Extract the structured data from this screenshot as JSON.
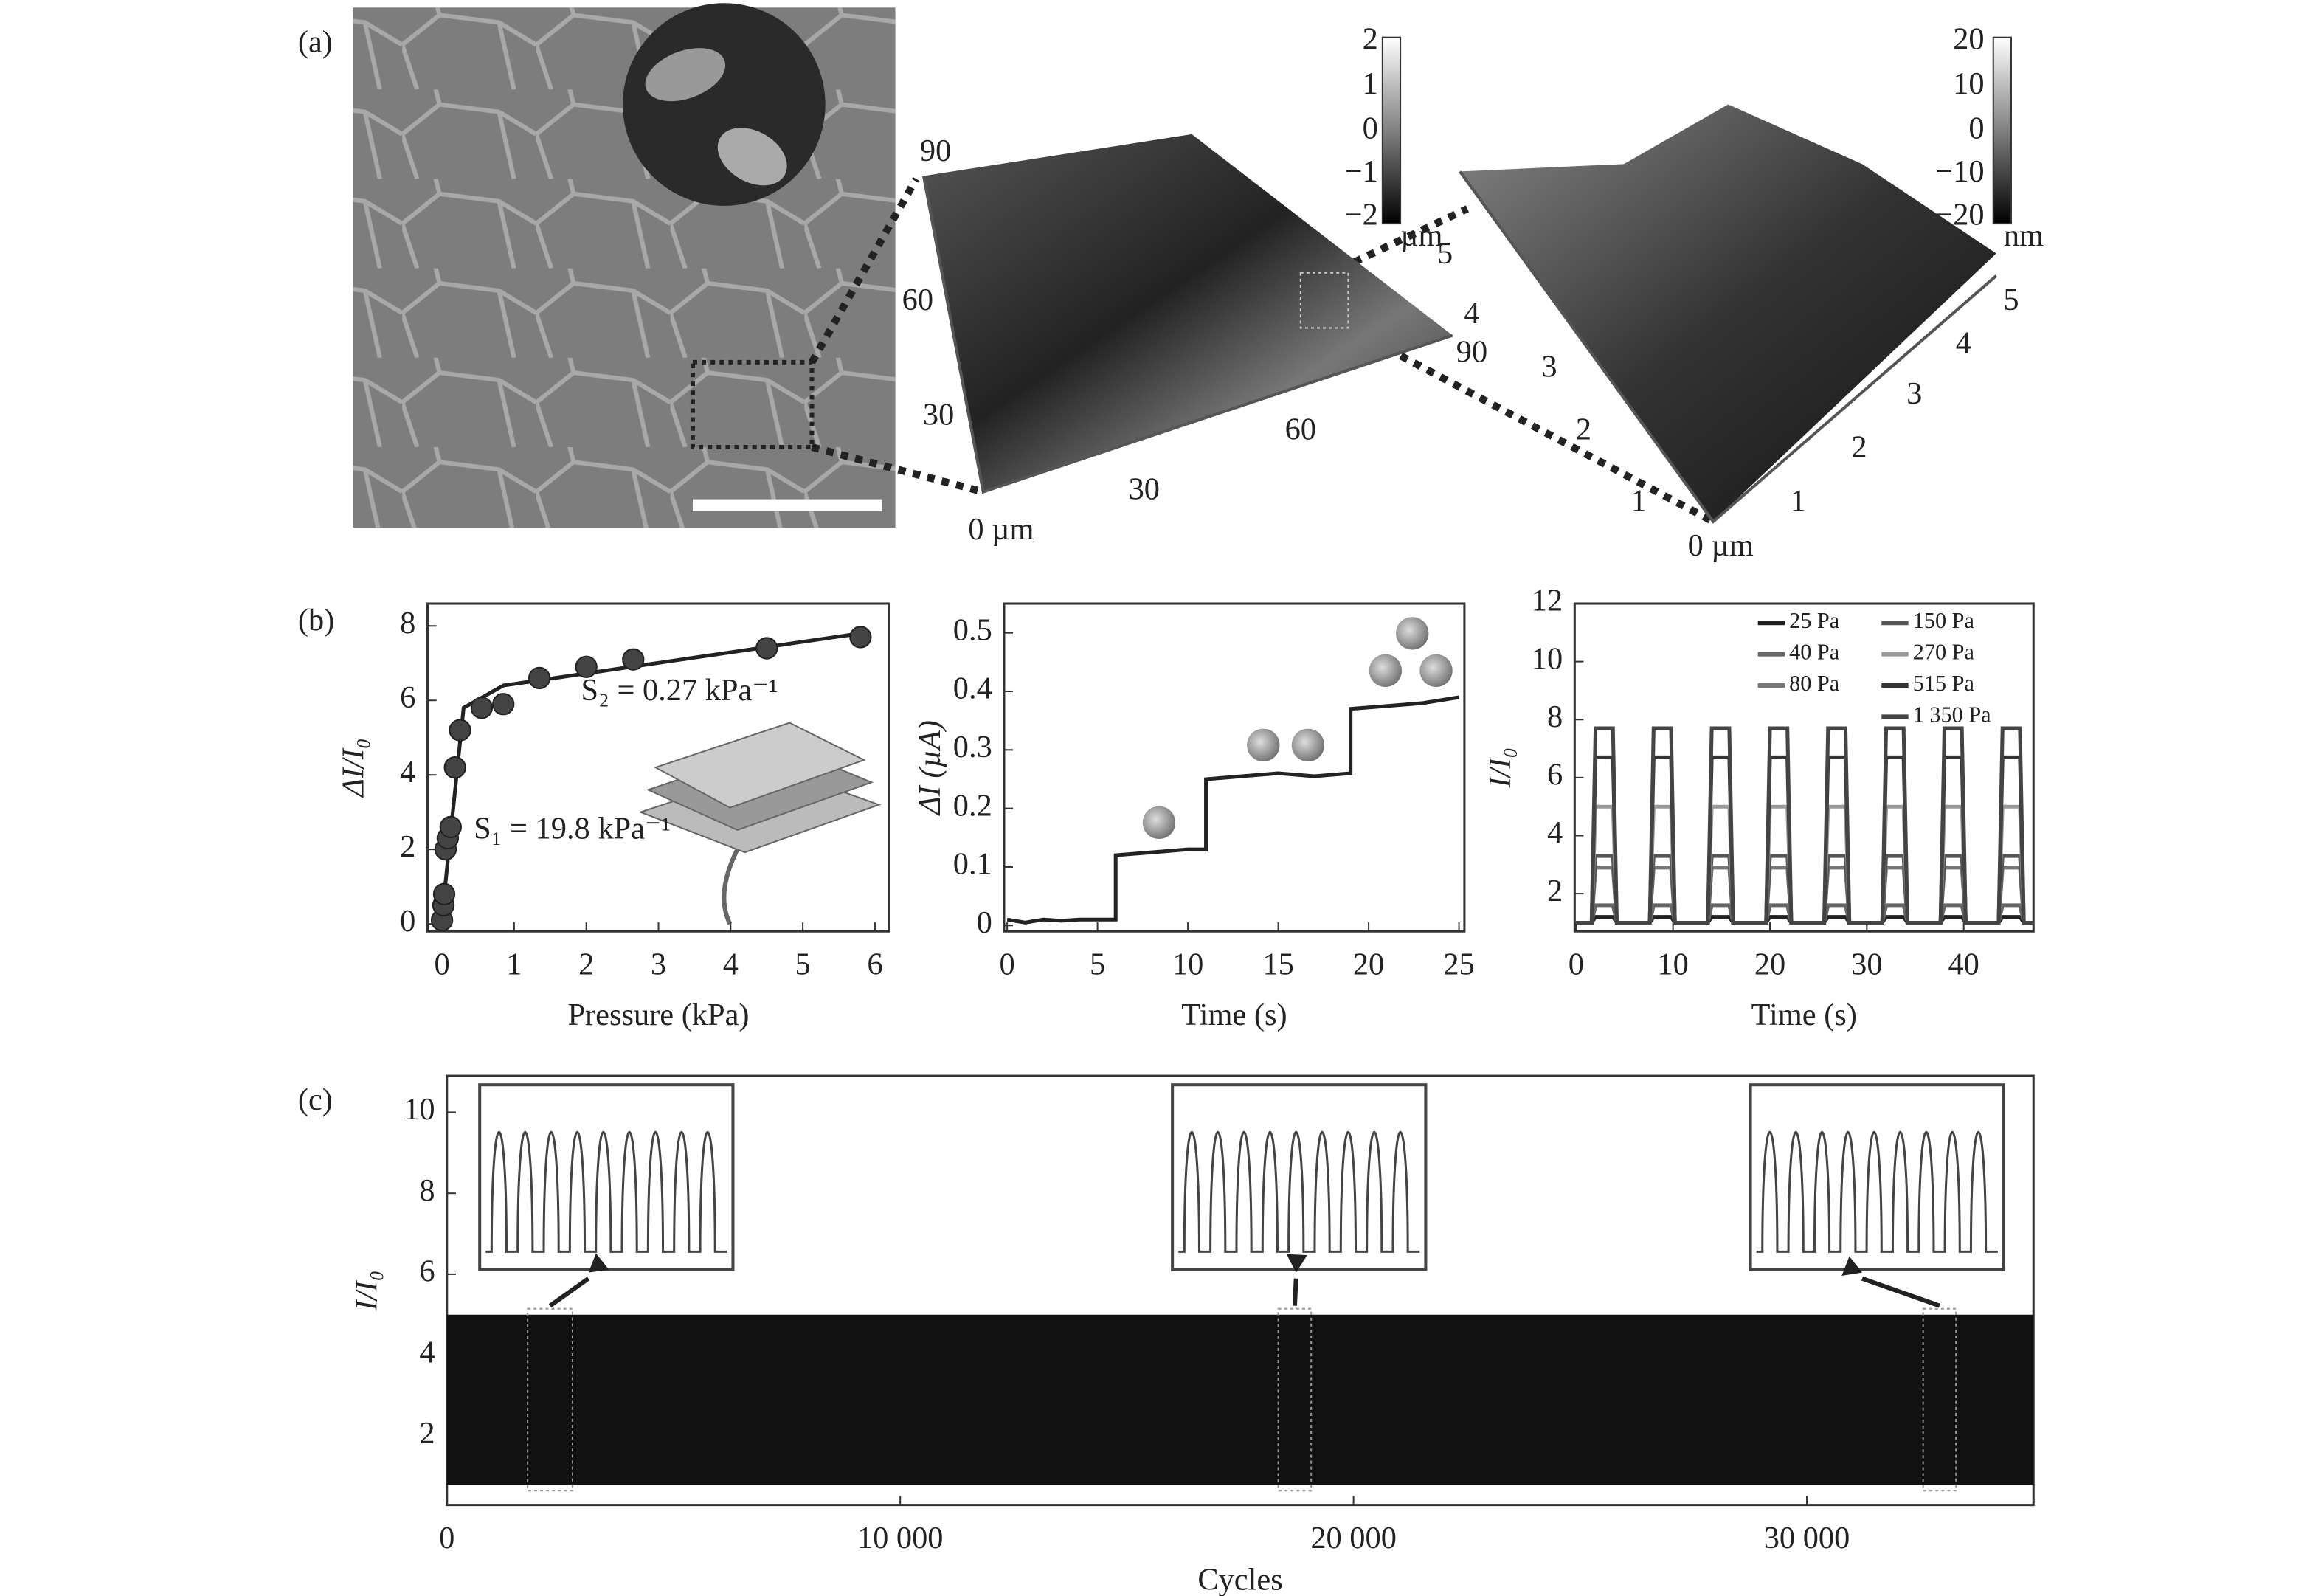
{
  "figure": {
    "panel_labels": [
      "(a)",
      "(b)",
      "(c)"
    ],
    "afm1": {
      "z_ticks": [
        2,
        1,
        0,
        {
          "value": -1,
          "label": "−1"
        },
        {
          "value": -2,
          "label": "−2"
        }
      ],
      "z_unit": "µm",
      "left_axis": [
        90,
        60,
        30,
        {
          "value": 0,
          "label": "0 µm"
        }
      ],
      "right_axis": [
        30,
        60,
        90
      ]
    },
    "afm2": {
      "z_ticks": [
        20,
        10,
        0,
        {
          "value": -10,
          "label": "−10"
        },
        {
          "value": -20,
          "label": "−20"
        }
      ],
      "z_unit": "nm",
      "left_axis": [
        5,
        4,
        3,
        2,
        1
      ],
      "right_axis": [
        1,
        2,
        3,
        4,
        5
      ],
      "origin": {
        "value": 0,
        "label": "0 µm"
      }
    }
  },
  "chart_data": [
    {
      "type": "scatter",
      "xlabel": "Pressure (kPa)",
      "ylabel": "ΔI/I₀",
      "xlim": [
        -0.2,
        6.2
      ],
      "ylim": [
        -0.2,
        8.6
      ],
      "xticks": [
        0,
        1,
        2,
        3,
        4,
        5,
        6
      ],
      "yticks": [
        0,
        2,
        4,
        6,
        8
      ],
      "x": [
        0,
        0.02,
        0.03,
        0.05,
        0.08,
        0.12,
        0.18,
        0.25,
        0.55,
        0.85,
        1.35,
        2.0,
        2.65,
        4.5,
        5.8
      ],
      "values": [
        0.1,
        0.5,
        0.8,
        2.0,
        2.3,
        2.6,
        4.2,
        5.2,
        5.8,
        5.9,
        6.6,
        6.9,
        7.1,
        7.4,
        7.7
      ],
      "color": "#444",
      "fit_x": [
        0,
        0.3,
        0.85,
        5.8
      ],
      "fit_values": [
        0.2,
        5.8,
        6.4,
        7.8
      ],
      "annotations": [
        "S₂ = 0.27 kPa⁻¹",
        "S₁ = 19.8 kPa⁻¹"
      ]
    },
    {
      "type": "line",
      "xlabel": "Time (s)",
      "ylabel": "ΔI (µA)",
      "xlim": [
        -0.17,
        25.3
      ],
      "ylim": [
        -0.01,
        0.55
      ],
      "xticks": [
        0,
        5,
        10,
        15,
        20,
        25
      ],
      "yticks": [
        0,
        0.1,
        0.2,
        0.3,
        0.4,
        0.5
      ],
      "x": [
        0,
        1,
        2,
        3,
        4,
        5,
        6,
        6,
        8,
        10,
        11,
        11,
        13,
        15,
        17,
        19,
        19,
        21,
        23,
        25
      ],
      "values": [
        0.01,
        0.005,
        0.01,
        0.008,
        0.01,
        0.01,
        0.01,
        0.12,
        0.125,
        0.13,
        0.13,
        0.25,
        0.255,
        0.26,
        0.255,
        0.26,
        0.37,
        0.375,
        0.38,
        0.39
      ],
      "color": "#222"
    },
    {
      "type": "line",
      "xlabel": "Time (s)",
      "ylabel": "I/I₀",
      "xlim": [
        -0.15,
        47.2
      ],
      "ylim": [
        0.7,
        12
      ],
      "xticks": [
        0,
        10,
        20,
        30,
        40
      ],
      "yticks": [
        2,
        4,
        6,
        8,
        10,
        12
      ],
      "legend": "upper right",
      "x": [
        0,
        1.6,
        2,
        3.8,
        4.2,
        7.6,
        8,
        9.8,
        10.2,
        13.6,
        14,
        15.8,
        16.2,
        19.6,
        20,
        21.8,
        22.2,
        25.6,
        26,
        27.8,
        28.2,
        31.6,
        32,
        33.8,
        34.2,
        37.6,
        38,
        39.8,
        40.2,
        43.6,
        44,
        45.8,
        46.2,
        47.2
      ],
      "series": [
        {
          "name": "25 Pa",
          "color": "#222",
          "values": [
            1,
            1,
            1.2,
            1.2,
            1,
            1,
            1.2,
            1.2,
            1,
            1,
            1.2,
            1.2,
            1,
            1,
            1.2,
            1.2,
            1,
            1,
            1.2,
            1.2,
            1,
            1,
            1.2,
            1.2,
            1,
            1,
            1.2,
            1.2,
            1,
            1,
            1.2,
            1.2,
            1,
            1
          ]
        },
        {
          "name": "40 Pa",
          "color": "#666",
          "values": [
            1,
            1,
            1.6,
            1.6,
            1,
            1,
            1.6,
            1.6,
            1,
            1,
            1.6,
            1.6,
            1,
            1,
            1.6,
            1.6,
            1,
            1,
            1.6,
            1.6,
            1,
            1,
            1.6,
            1.6,
            1,
            1,
            1.6,
            1.6,
            1,
            1,
            1.6,
            1.6,
            1,
            1
          ]
        },
        {
          "name": "80 Pa",
          "color": "#777",
          "values": [
            1,
            1,
            2.9,
            2.9,
            1,
            1,
            2.9,
            2.9,
            1,
            1,
            2.9,
            2.9,
            1,
            1,
            2.9,
            2.9,
            1,
            1,
            2.9,
            2.9,
            1,
            1,
            2.9,
            2.9,
            1,
            1,
            2.9,
            2.9,
            1,
            1,
            2.9,
            2.9,
            1,
            1
          ]
        },
        {
          "name": "150 Pa",
          "color": "#555",
          "values": [
            1,
            1,
            3.3,
            3.3,
            1,
            1,
            3.3,
            3.3,
            1,
            1,
            3.3,
            3.3,
            1,
            1,
            3.3,
            3.3,
            1,
            1,
            3.3,
            3.3,
            1,
            1,
            3.3,
            3.3,
            1,
            1,
            3.3,
            3.3,
            1,
            1,
            3.3,
            3.3,
            1,
            1
          ]
        },
        {
          "name": "270 Pa",
          "color": "#999",
          "values": [
            1,
            1,
            5.0,
            5.0,
            1,
            1,
            5.0,
            5.0,
            1,
            1,
            5.0,
            5.0,
            1,
            1,
            5.0,
            5.0,
            1,
            1,
            5.0,
            5.0,
            1,
            1,
            5.0,
            5.0,
            1,
            1,
            5.0,
            5.0,
            1,
            1,
            5.0,
            5.0,
            1,
            1
          ]
        },
        {
          "name": "515 Pa",
          "color": "#333",
          "values": [
            1,
            1,
            6.7,
            6.7,
            1,
            1,
            6.7,
            6.7,
            1,
            1,
            6.7,
            6.7,
            1,
            1,
            6.7,
            6.7,
            1,
            1,
            6.7,
            6.7,
            1,
            1,
            6.7,
            6.7,
            1,
            1,
            6.7,
            6.7,
            1,
            1,
            6.7,
            6.7,
            1,
            1
          ]
        },
        {
          "name": "1 350 Pa",
          "color": "#444",
          "values": [
            1,
            1,
            7.7,
            7.7,
            1,
            1,
            7.7,
            7.7,
            1,
            1,
            7.7,
            7.7,
            1,
            1,
            7.7,
            7.7,
            1,
            1,
            7.7,
            7.7,
            1,
            1,
            7.7,
            7.7,
            1,
            1,
            7.7,
            7.7,
            1,
            1,
            7.7,
            7.7,
            1,
            1
          ]
        }
      ]
    },
    {
      "type": "band",
      "xlabel": "Cycles",
      "ylabel": "I/I₀",
      "xlim": [
        0,
        35000
      ],
      "ylim": [
        0.3,
        10.9
      ],
      "xticks": [
        0,
        {
          "value": 10000,
          "label": "10 000"
        },
        {
          "value": 20000,
          "label": "20 000"
        },
        {
          "value": 30000,
          "label": "30 000"
        }
      ],
      "yticks": [
        2,
        4,
        6,
        8,
        10
      ],
      "x": [
        0,
        35000
      ],
      "low": [
        0.8,
        0.8
      ],
      "high": [
        5.0,
        5.0
      ],
      "color": "#111",
      "zoom_ranges": [
        [
          1780,
          2770
        ],
        [
          18340,
          19065
        ],
        [
          32565,
          33290
        ]
      ]
    }
  ]
}
